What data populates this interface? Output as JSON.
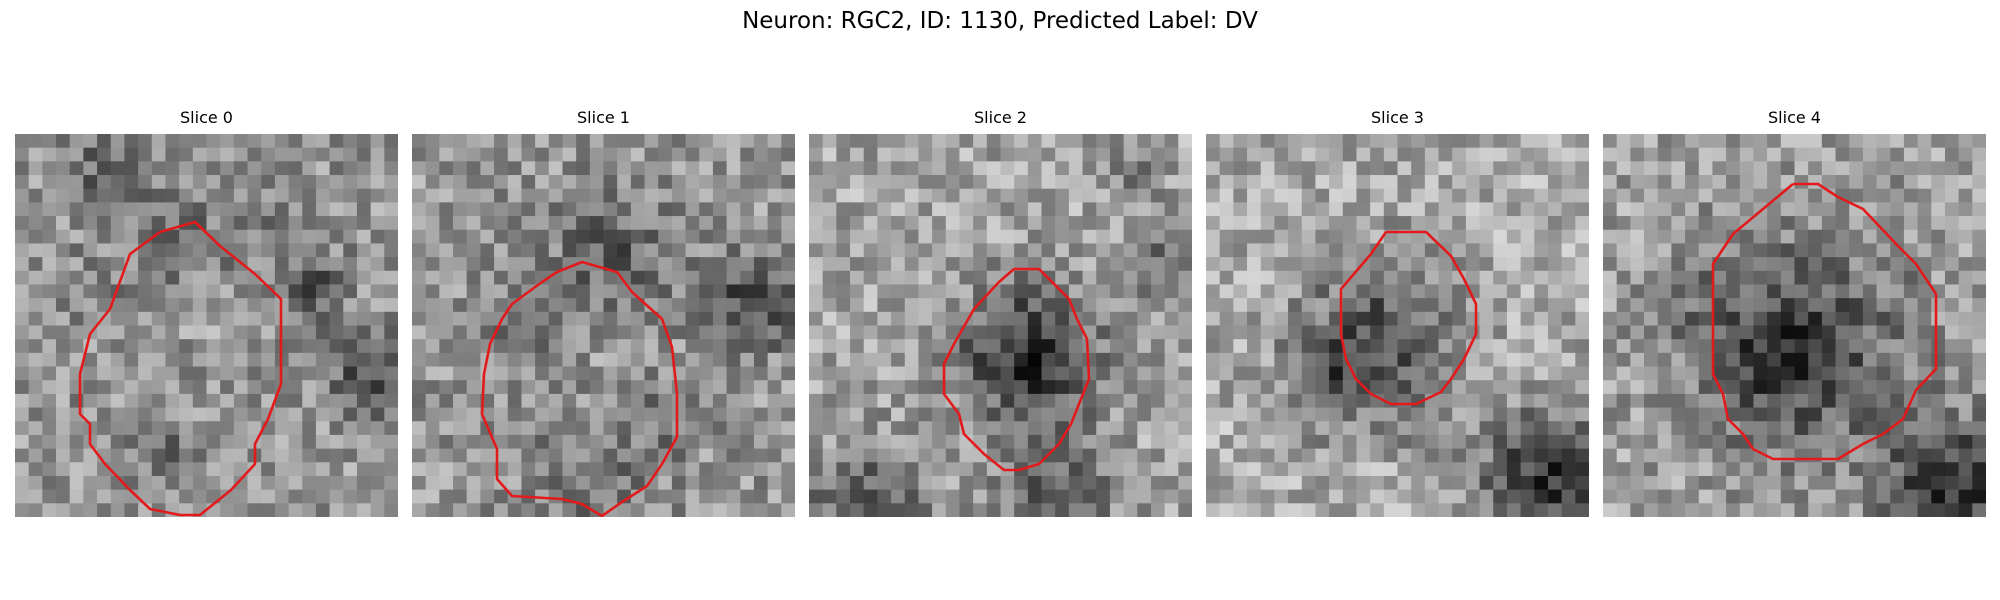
{
  "figure": {
    "title": "Neuron: RGC2, ID: 1130, Predicted Label: DV",
    "outline_color": "#e31a1c",
    "colormap": "gray"
  },
  "panels": [
    {
      "title": "Slice 0",
      "image": "grayscale-em-patch",
      "contour": "red-cell-outline"
    },
    {
      "title": "Slice 1",
      "image": "grayscale-em-patch",
      "contour": "red-cell-outline"
    },
    {
      "title": "Slice 2",
      "image": "grayscale-em-patch",
      "contour": "red-cell-outline"
    },
    {
      "title": "Slice 3",
      "image": "grayscale-em-patch",
      "contour": "red-cell-outline"
    },
    {
      "title": "Slice 4",
      "image": "grayscale-em-patch",
      "contour": "red-cell-outline"
    }
  ]
}
